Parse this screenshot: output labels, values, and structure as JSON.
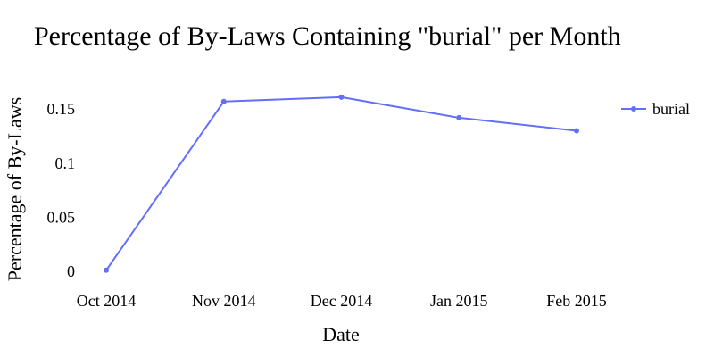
{
  "chart_data": {
    "type": "line",
    "title": "Percentage of By-Laws Containing \"burial\" per Month",
    "xlabel": "Date",
    "ylabel": "Percentage of By-Laws",
    "x": [
      "Oct 2014",
      "Nov 2014",
      "Dec 2014",
      "Jan 2015",
      "Feb 2015"
    ],
    "xlim": [
      "Oct 2014",
      "Feb 2015"
    ],
    "ylim": [
      0,
      0.17
    ],
    "yticks": [
      {
        "value": 0,
        "label": "0"
      },
      {
        "value": 0.05,
        "label": "0.05"
      },
      {
        "value": 0.1,
        "label": "0.1"
      },
      {
        "value": 0.15,
        "label": "0.15"
      }
    ],
    "grid": false,
    "legend": "top-right",
    "series": [
      {
        "name": "burial",
        "color": "#636efa",
        "values": [
          0.001,
          0.157,
          0.161,
          0.142,
          0.13
        ]
      }
    ]
  }
}
